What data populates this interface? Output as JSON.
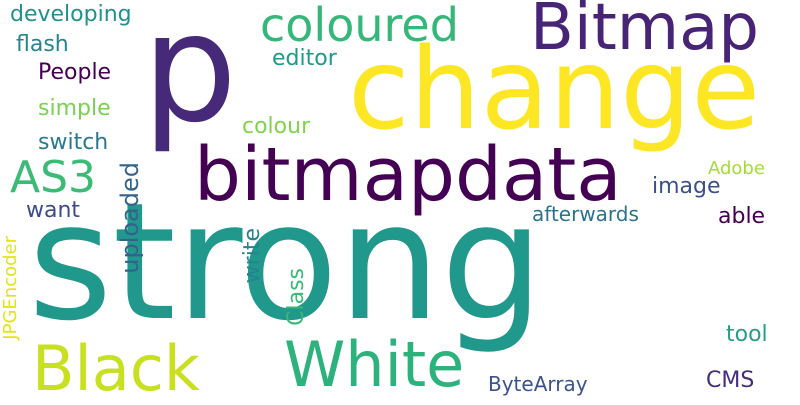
{
  "words": {
    "strong": {
      "text": "strong",
      "color": "#20988b"
    },
    "p": {
      "text": "p",
      "color": "#462a79"
    },
    "change": {
      "text": "change",
      "color": "#fde725"
    },
    "bitmapdata": {
      "text": "bitmapdata",
      "color": "#440154"
    },
    "bitmap": {
      "text": "Bitmap",
      "color": "#482476"
    },
    "white": {
      "text": "White",
      "color": "#2db27d"
    },
    "black": {
      "text": "Black",
      "color": "#c8e020"
    },
    "coloured": {
      "text": "coloured",
      "color": "#35b779"
    },
    "as3": {
      "text": "AS3",
      "color": "#3bbb75"
    },
    "developing": {
      "text": "developing",
      "color": "#21918c"
    },
    "flash": {
      "text": "flash",
      "color": "#25848e"
    },
    "people": {
      "text": "People",
      "color": "#440154"
    },
    "simple": {
      "text": "simple",
      "color": "#7ad151"
    },
    "switch": {
      "text": "switch",
      "color": "#2a788e"
    },
    "want": {
      "text": "want",
      "color": "#3e4a89"
    },
    "editor": {
      "text": "editor",
      "color": "#1f9a8a"
    },
    "colour": {
      "text": "colour",
      "color": "#7fd34e"
    },
    "image": {
      "text": "image",
      "color": "#3b518b"
    },
    "adobe": {
      "text": "Adobe",
      "color": "#a5db36"
    },
    "able": {
      "text": "able",
      "color": "#440154"
    },
    "afterwards": {
      "text": "afterwards",
      "color": "#2c728e"
    },
    "tool": {
      "text": "tool",
      "color": "#2a9b86"
    },
    "cms": {
      "text": "CMS",
      "color": "#472d7b"
    },
    "bytearray": {
      "text": "ByteArray",
      "color": "#3b528b"
    },
    "uploaded": {
      "text": "uploaded",
      "color": "#33638d"
    },
    "jpgencoder": {
      "text": "JPGEncoder",
      "color": "#e3e418"
    },
    "write": {
      "text": "write",
      "color": "#26828e"
    },
    "class": {
      "text": "Class",
      "color": "#3aba76"
    }
  }
}
